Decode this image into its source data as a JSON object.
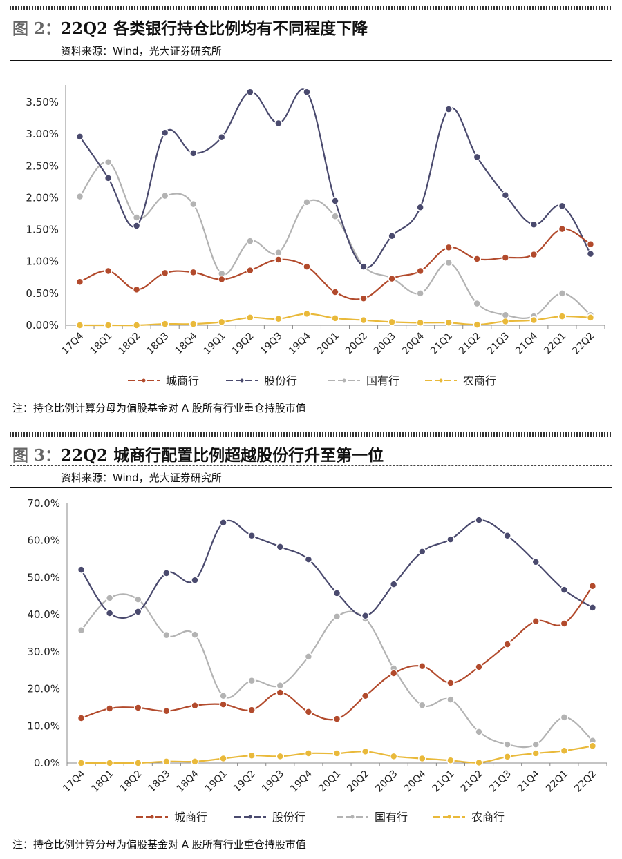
{
  "colors": {
    "城商行": "#b24a2c",
    "股份行": "#4a4a6e",
    "国有行": "#b3b3b3",
    "农商行": "#e9b93a"
  },
  "figures": [
    {
      "fig_label": "图 2：",
      "title": "22Q2 各类银行持仓比例均有不同程度下降",
      "source": "资料来源：Wind，光大证券研究所",
      "note": "注：持仓比例计算分母为偏股基金对 A 股所有行业重仓持股市值"
    },
    {
      "fig_label": "图 3：",
      "title": "22Q2 城商行配置比例超越股份行升至第一位",
      "source": "资料来源：Wind，光大证券研究所",
      "note": "注：持仓比例计算分母为偏股基金对 A 股所有行业重仓持股市值"
    }
  ],
  "chart_data": [
    {
      "type": "line",
      "categories": [
        "17Q4",
        "18Q1",
        "18Q2",
        "18Q3",
        "18Q4",
        "19Q1",
        "19Q2",
        "19Q3",
        "19Q4",
        "20Q1",
        "20Q2",
        "20Q3",
        "20Q4",
        "21Q1",
        "21Q2",
        "21Q3",
        "21Q4",
        "22Q1",
        "22Q2"
      ],
      "ylim": [
        0,
        3.5
      ],
      "yticks": [
        "0.00%",
        "0.50%",
        "1.00%",
        "1.50%",
        "2.00%",
        "2.50%",
        "3.00%",
        "3.50%"
      ],
      "legend_position": "bottom",
      "grid": false,
      "series": [
        {
          "name": "城商行",
          "values": [
            0.68,
            0.85,
            0.56,
            0.82,
            0.83,
            0.72,
            0.86,
            1.03,
            0.92,
            0.52,
            0.42,
            0.73,
            0.85,
            1.22,
            1.04,
            1.06,
            1.11,
            1.51,
            1.27
          ]
        },
        {
          "name": "股份行",
          "values": [
            2.96,
            2.31,
            1.56,
            3.02,
            2.7,
            2.95,
            3.66,
            3.17,
            3.66,
            1.95,
            0.92,
            1.4,
            1.85,
            3.39,
            2.64,
            2.04,
            1.58,
            1.87,
            1.12
          ]
        },
        {
          "name": "国有行",
          "values": [
            2.02,
            2.56,
            1.69,
            2.03,
            1.9,
            0.81,
            1.32,
            1.14,
            1.93,
            1.71,
            0.93,
            0.74,
            0.5,
            0.98,
            0.34,
            0.16,
            0.14,
            0.5,
            0.16
          ]
        },
        {
          "name": "农商行",
          "values": [
            0.0,
            0.0,
            0.0,
            0.02,
            0.02,
            0.05,
            0.12,
            0.1,
            0.18,
            0.11,
            0.08,
            0.05,
            0.04,
            0.04,
            0.01,
            0.06,
            0.08,
            0.14,
            0.12
          ]
        }
      ]
    },
    {
      "type": "line",
      "categories": [
        "17Q4",
        "18Q1",
        "18Q2",
        "18Q3",
        "18Q4",
        "19Q1",
        "19Q2",
        "19Q3",
        "19Q4",
        "20Q1",
        "20Q2",
        "20Q3",
        "20Q4",
        "21Q1",
        "21Q2",
        "21Q3",
        "21Q4",
        "22Q1",
        "22Q2"
      ],
      "ylim": [
        0,
        70
      ],
      "yticks": [
        "0.0%",
        "10.0%",
        "20.0%",
        "30.0%",
        "40.0%",
        "50.0%",
        "60.0%",
        "70.0%"
      ],
      "legend_position": "bottom",
      "grid": false,
      "series": [
        {
          "name": "城商行",
          "values": [
            12.1,
            14.7,
            14.9,
            14.0,
            15.5,
            15.8,
            14.3,
            19.0,
            13.8,
            11.9,
            18.1,
            24.2,
            26.1,
            21.6,
            25.9,
            32.0,
            38.2,
            37.6,
            47.7
          ]
        },
        {
          "name": "股份行",
          "values": [
            52.1,
            40.4,
            40.8,
            51.2,
            49.3,
            64.8,
            61.3,
            58.3,
            54.9,
            45.8,
            39.7,
            48.2,
            57.0,
            60.3,
            65.5,
            61.3,
            54.2,
            46.7,
            41.9
          ]
        },
        {
          "name": "国有行",
          "values": [
            35.8,
            44.5,
            44.1,
            34.5,
            34.6,
            18.1,
            22.2,
            20.9,
            28.7,
            39.5,
            38.9,
            25.5,
            15.6,
            17.1,
            8.4,
            5.0,
            5.0,
            12.3,
            6.0
          ]
        },
        {
          "name": "农商行",
          "values": [
            0.0,
            0.0,
            0.0,
            0.4,
            0.4,
            1.2,
            2.0,
            1.8,
            2.6,
            2.6,
            3.1,
            1.8,
            1.2,
            0.7,
            0.1,
            1.7,
            2.6,
            3.3,
            4.6
          ]
        }
      ]
    }
  ]
}
